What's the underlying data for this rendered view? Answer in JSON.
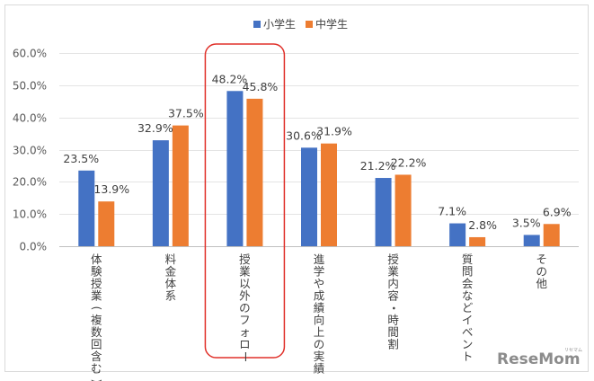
{
  "chart_data": {
    "type": "bar",
    "categories": [
      "体験授業(複数回含む)",
      "料金体系",
      "授業以外のフォロー",
      "進学や成績向上の実績",
      "授業内容・時間割",
      "質問会などイベント",
      "その他"
    ],
    "series": [
      {
        "name": "小学生",
        "color": "#4472C4",
        "values": [
          23.5,
          32.9,
          48.2,
          30.6,
          21.2,
          7.1,
          3.5
        ],
        "labels": [
          "23.5%",
          "32.9%",
          "48.2%",
          "30.6%",
          "21.2%",
          "7.1%",
          "3.5%"
        ]
      },
      {
        "name": "中学生",
        "color": "#ED7D31",
        "values": [
          13.9,
          37.5,
          45.8,
          31.9,
          22.2,
          2.8,
          6.9
        ],
        "labels": [
          "13.9%",
          "37.5%",
          "45.8%",
          "31.9%",
          "22.2%",
          "2.8%",
          "6.9%"
        ]
      }
    ],
    "ylim": [
      0,
      60
    ],
    "yticks": [
      "0.0%",
      "10.0%",
      "20.0%",
      "30.0%",
      "40.0%",
      "50.0%",
      "60.0%"
    ],
    "grid": true,
    "legend_position": "top-center",
    "highlighted_category": "授業以外のフォロー",
    "highlight_color": "#E0312A"
  },
  "watermark": {
    "text": "ReseMom",
    "subtext": "リセマム"
  }
}
